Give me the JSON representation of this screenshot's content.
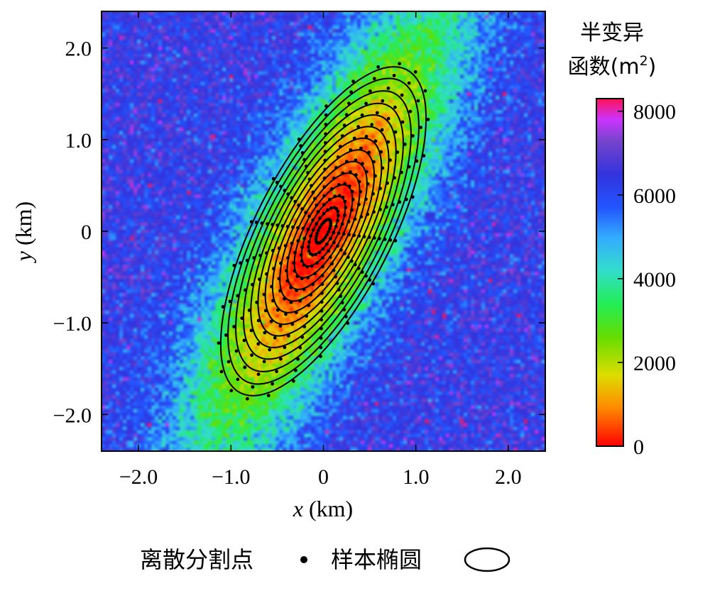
{
  "chart_data": {
    "type": "heatmap",
    "xlabel": {
      "var": "x",
      "unit": " (km)"
    },
    "ylabel": {
      "var": "y",
      "unit": " (km)"
    },
    "xlim": [
      -2.4,
      2.4
    ],
    "ylim": [
      -2.4,
      2.4
    ],
    "xticks": [
      {
        "value": -2.0,
        "label": "−2.0"
      },
      {
        "value": -1.0,
        "label": "−1.0"
      },
      {
        "value": 0,
        "label": "0"
      },
      {
        "value": 1.0,
        "label": "1.0"
      },
      {
        "value": 2.0,
        "label": "2.0"
      }
    ],
    "yticks": [
      {
        "value": 2.0,
        "label": "2.0"
      },
      {
        "value": 1.0,
        "label": "1.0"
      },
      {
        "value": 0,
        "label": "0"
      },
      {
        "value": -1.0,
        "label": "−1.0"
      },
      {
        "value": -2.0,
        "label": "−2.0"
      }
    ],
    "colorbar": {
      "title_line1": "半变异",
      "title_line2": "函数(m",
      "title_sup": "2",
      "title_close": ")",
      "range": [
        0,
        8300
      ],
      "ticks": [
        {
          "value": 8000,
          "label": "8000"
        },
        {
          "value": 6000,
          "label": "6000"
        },
        {
          "value": 4000,
          "label": "4000"
        },
        {
          "value": 2000,
          "label": "2000"
        },
        {
          "value": 0,
          "label": "0"
        }
      ],
      "stops": [
        {
          "value": 0,
          "color": "#ff0000"
        },
        {
          "value": 900,
          "color": "#ff8800"
        },
        {
          "value": 1700,
          "color": "#dddd00"
        },
        {
          "value": 2600,
          "color": "#66dd00"
        },
        {
          "value": 3400,
          "color": "#22ee55"
        },
        {
          "value": 4200,
          "color": "#33ddcc"
        },
        {
          "value": 5000,
          "color": "#33aaff"
        },
        {
          "value": 5700,
          "color": "#2255ff"
        },
        {
          "value": 6500,
          "color": "#3333dd"
        },
        {
          "value": 7300,
          "color": "#7744cc"
        },
        {
          "value": 7800,
          "color": "#cc33ff"
        },
        {
          "value": 8300,
          "color": "#ff1155"
        }
      ]
    },
    "field": {
      "major_axis_angle_deg": 63,
      "sill": 6400,
      "range_major_km": 3.5,
      "range_minor_km": 0.9,
      "noise": 1100
    },
    "ellipses": {
      "center": [
        0,
        0
      ],
      "orientation_deg": 63,
      "axis_ratio": 0.37,
      "semi_major_km": [
        0.14,
        0.28,
        0.42,
        0.56,
        0.7,
        0.84,
        0.98,
        1.12,
        1.26,
        1.4,
        1.54,
        1.69,
        1.84,
        1.98
      ],
      "discrete_points_per_ellipse": 24
    },
    "legend": {
      "points_label": "离散分割点",
      "ellipse_label": "样本椭圆"
    }
  }
}
